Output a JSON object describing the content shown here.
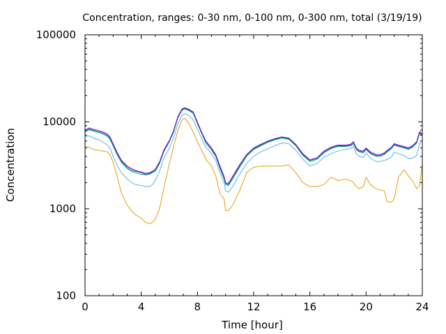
{
  "chart_data": {
    "type": "line",
    "title": "Concentration, ranges: 0-30 nm, 0-100 nm, 0-300 nm, total (3/19/19)",
    "xlabel": "Time [hour]",
    "ylabel": "Concentration",
    "xlim": [
      0,
      24
    ],
    "ylim": [
      100,
      100000
    ],
    "y_scale": "log",
    "grid": false,
    "x_ticks": [
      0,
      4,
      8,
      12,
      16,
      20,
      24
    ],
    "x_tick_labels": [
      "0",
      "4",
      "8",
      "12",
      "16",
      "20",
      "24"
    ],
    "y_ticks": [
      100,
      1000,
      10000,
      100000
    ],
    "y_tick_labels": [
      "100",
      "1000",
      "10000",
      "100000"
    ],
    "series": [
      {
        "color": "#e69f00",
        "x": [
          0,
          0.3,
          0.6,
          1,
          1.3,
          1.6,
          1.8,
          2,
          2.3,
          2.6,
          3,
          3.3,
          3.6,
          4,
          4.3,
          4.6,
          4.8,
          5,
          5.3,
          5.6,
          6,
          6.3,
          6.6,
          6.9,
          7.1,
          7.4,
          7.7,
          8,
          8.3,
          8.6,
          9,
          9.3,
          9.6,
          9.9,
          10,
          10.2,
          10.5,
          11,
          11.5,
          12,
          12.5,
          13,
          13.5,
          14,
          14.5,
          15,
          15.5,
          16,
          16.5,
          17,
          17.5,
          17.8,
          18,
          18.5,
          18.9,
          19.1,
          19.3,
          19.5,
          19.8,
          20,
          20.3,
          20.7,
          21,
          21.3,
          21.5,
          21.8,
          22,
          22.3,
          22.7,
          23,
          23.3,
          23.6,
          23.8,
          24
        ],
        "y": [
          5200,
          5100,
          4800,
          4700,
          4600,
          4500,
          4100,
          3400,
          2300,
          1500,
          1100,
          950,
          850,
          780,
          700,
          670,
          700,
          760,
          1000,
          1700,
          3300,
          5200,
          7800,
          10500,
          11000,
          9500,
          7600,
          5900,
          4700,
          3700,
          3100,
          2400,
          1500,
          1300,
          950,
          950,
          1100,
          1600,
          2600,
          3000,
          3100,
          3100,
          3100,
          3100,
          3200,
          2600,
          2000,
          1800,
          1800,
          1900,
          2300,
          2200,
          2100,
          2200,
          2100,
          2000,
          1800,
          1700,
          1800,
          2300,
          1900,
          1700,
          1650,
          1600,
          1200,
          1200,
          1300,
          2300,
          2800,
          2400,
          2100,
          1700,
          1850,
          3300
        ]
      },
      {
        "color": "#56b4e9",
        "x": [
          0,
          0.3,
          0.6,
          1,
          1.3,
          1.6,
          1.8,
          2,
          2.3,
          2.6,
          3,
          3.3,
          3.6,
          4,
          4.3,
          4.6,
          4.8,
          5,
          5.3,
          5.6,
          6,
          6.3,
          6.6,
          6.9,
          7.1,
          7.4,
          7.7,
          8,
          8.3,
          8.6,
          9,
          9.3,
          9.6,
          9.9,
          10,
          10.2,
          10.5,
          11,
          11.5,
          12,
          12.5,
          13,
          13.5,
          14,
          14.5,
          15,
          15.5,
          16,
          16.5,
          17,
          17.5,
          17.8,
          18,
          18.5,
          18.9,
          19.1,
          19.3,
          19.5,
          19.8,
          20,
          20.3,
          20.7,
          21,
          21.3,
          21.5,
          21.8,
          22,
          22.3,
          22.7,
          23,
          23.3,
          23.6,
          23.8,
          24
        ],
        "y": [
          6700,
          6900,
          6500,
          6200,
          5800,
          5400,
          4900,
          4000,
          3100,
          2600,
          2200,
          2000,
          1900,
          1850,
          1800,
          1800,
          1900,
          2100,
          2700,
          3800,
          5000,
          6500,
          9300,
          11800,
          12400,
          11800,
          10500,
          8200,
          6400,
          5100,
          4300,
          3600,
          2600,
          2000,
          1600,
          1550,
          1800,
          2500,
          3300,
          4000,
          4500,
          4900,
          5300,
          5700,
          5600,
          4700,
          3700,
          3100,
          3300,
          3900,
          4300,
          4500,
          4600,
          4800,
          4900,
          5200,
          4300,
          4000,
          3900,
          4400,
          3800,
          3500,
          3500,
          3600,
          3700,
          3900,
          4500,
          4300,
          4100,
          3800,
          3800,
          4100,
          5600,
          6200
        ]
      },
      {
        "color": "#009e73",
        "x": [
          0,
          0.3,
          0.6,
          1,
          1.3,
          1.6,
          1.8,
          2,
          2.3,
          2.6,
          3,
          3.3,
          3.6,
          4,
          4.3,
          4.6,
          4.8,
          5,
          5.3,
          5.6,
          6,
          6.3,
          6.6,
          6.9,
          7.1,
          7.4,
          7.7,
          8,
          8.3,
          8.6,
          9,
          9.3,
          9.6,
          9.9,
          10,
          10.2,
          10.5,
          11,
          11.5,
          12,
          12.5,
          13,
          13.5,
          14,
          14.5,
          15,
          15.5,
          16,
          16.5,
          17,
          17.5,
          17.8,
          18,
          18.5,
          18.9,
          19.1,
          19.3,
          19.5,
          19.8,
          20,
          20.3,
          20.7,
          21,
          21.3,
          21.5,
          21.8,
          22,
          22.3,
          22.7,
          23,
          23.3,
          23.6,
          23.8,
          24
        ],
        "y": [
          7600,
          8100,
          7800,
          7500,
          7200,
          6800,
          6200,
          5300,
          4100,
          3400,
          2900,
          2700,
          2600,
          2500,
          2450,
          2500,
          2600,
          2700,
          3300,
          4500,
          5900,
          7600,
          11000,
          13500,
          14000,
          13400,
          12500,
          9500,
          7300,
          5700,
          4700,
          4000,
          2900,
          2200,
          1900,
          1850,
          2200,
          3000,
          4000,
          4800,
          5300,
          5800,
          6200,
          6500,
          6300,
          5300,
          4100,
          3500,
          3700,
          4400,
          4900,
          5100,
          5200,
          5200,
          5300,
          5600,
          4800,
          4500,
          4400,
          4800,
          4300,
          4000,
          4000,
          4200,
          4500,
          4900,
          5400,
          5200,
          5000,
          4800,
          5100,
          5700,
          7300,
          7000
        ]
      },
      {
        "color": "#0072b2",
        "x": [
          0,
          0.3,
          0.6,
          1,
          1.3,
          1.6,
          1.8,
          2,
          2.3,
          2.6,
          3,
          3.3,
          3.6,
          4,
          4.3,
          4.6,
          4.8,
          5,
          5.3,
          5.6,
          6,
          6.3,
          6.6,
          6.9,
          7.1,
          7.4,
          7.7,
          8,
          8.3,
          8.6,
          9,
          9.3,
          9.6,
          9.9,
          10,
          10.2,
          10.5,
          11,
          11.5,
          12,
          12.5,
          13,
          13.5,
          14,
          14.5,
          15,
          15.5,
          16,
          16.5,
          17,
          17.5,
          17.8,
          18,
          18.5,
          18.9,
          19.1,
          19.3,
          19.5,
          19.8,
          20,
          20.3,
          20.7,
          21,
          21.3,
          21.5,
          21.8,
          22,
          22.3,
          22.7,
          23,
          23.3,
          23.6,
          23.8,
          24
        ],
        "y": [
          7800,
          8300,
          8000,
          7700,
          7400,
          7000,
          6400,
          5500,
          4300,
          3500,
          3000,
          2800,
          2700,
          2600,
          2500,
          2550,
          2650,
          2800,
          3400,
          4600,
          6000,
          7800,
          11200,
          13800,
          14300,
          13700,
          12800,
          9700,
          7500,
          5900,
          4900,
          4100,
          3000,
          2300,
          1950,
          1900,
          2300,
          3100,
          4100,
          4900,
          5400,
          5900,
          6300,
          6600,
          6400,
          5400,
          4200,
          3600,
          3800,
          4500,
          5000,
          5200,
          5300,
          5300,
          5400,
          5800,
          4900,
          4600,
          4500,
          4900,
          4400,
          4100,
          4100,
          4300,
          4600,
          5000,
          5500,
          5300,
          5100,
          4900,
          5200,
          5800,
          7500,
          7100
        ]
      },
      {
        "color": "#9400d3",
        "x": [
          0,
          0.3,
          0.6,
          1,
          1.3,
          1.6,
          1.8,
          2,
          2.3,
          2.6,
          3,
          3.3,
          3.6,
          4,
          4.3,
          4.6,
          4.8,
          5,
          5.3,
          5.6,
          6,
          6.3,
          6.6,
          6.9,
          7.1,
          7.4,
          7.7,
          8,
          8.3,
          8.6,
          9,
          9.3,
          9.6,
          9.9,
          10,
          10.2,
          10.5,
          11,
          11.5,
          12,
          12.5,
          13,
          13.5,
          14,
          14.5,
          15,
          15.5,
          16,
          16.5,
          17,
          17.5,
          17.8,
          18,
          18.5,
          18.9,
          19.1,
          19.3,
          19.5,
          19.8,
          20,
          20.3,
          20.7,
          21,
          21.3,
          21.5,
          21.8,
          22,
          22.3,
          22.7,
          23,
          23.3,
          23.6,
          23.8,
          24
        ],
        "y": [
          8000,
          8500,
          8200,
          7900,
          7600,
          7200,
          6600,
          5600,
          4400,
          3600,
          3100,
          2900,
          2750,
          2650,
          2550,
          2600,
          2700,
          2850,
          3450,
          4700,
          6100,
          7900,
          11400,
          14000,
          14500,
          13900,
          13000,
          9900,
          7600,
          6000,
          5000,
          4200,
          3100,
          2350,
          2000,
          1950,
          2350,
          3200,
          4200,
          5000,
          5500,
          6000,
          6400,
          6700,
          6500,
          5500,
          4300,
          3650,
          3850,
          4600,
          5100,
          5300,
          5400,
          5400,
          5500,
          5900,
          5000,
          4700,
          4600,
          5000,
          4500,
          4200,
          4200,
          4400,
          4700,
          5100,
          5600,
          5400,
          5200,
          5000,
          5300,
          5900,
          7700,
          7200
        ]
      }
    ]
  }
}
